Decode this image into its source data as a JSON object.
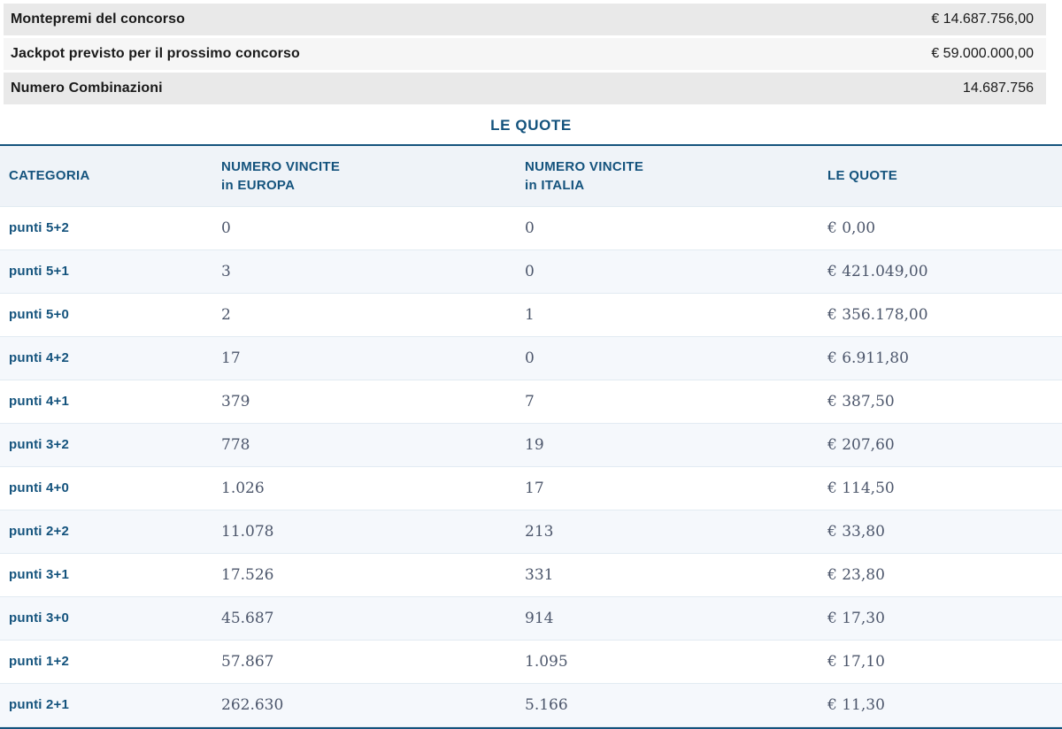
{
  "summary": {
    "rows": [
      {
        "label": "Montepremi del concorso",
        "value": "€ 14.687.756,00"
      },
      {
        "label": "Jackpot previsto per il prossimo concorso",
        "value": "€ 59.000.000,00"
      },
      {
        "label": "Numero Combinazioni",
        "value": "14.687.756"
      }
    ]
  },
  "section": {
    "title": "LE QUOTE"
  },
  "table": {
    "columns": [
      {
        "label": "CATEGORIA",
        "sublabel": ""
      },
      {
        "label": "NUMERO VINCITE",
        "sublabel": "in EUROPA"
      },
      {
        "label": "NUMERO VINCITE",
        "sublabel": "in ITALIA"
      },
      {
        "label": "LE QUOTE",
        "sublabel": ""
      }
    ],
    "rows": [
      {
        "categoria": "punti 5+2",
        "europa": "0",
        "italia": "0",
        "quota": "€ 0,00"
      },
      {
        "categoria": "punti 5+1",
        "europa": "3",
        "italia": "0",
        "quota": "€ 421.049,00"
      },
      {
        "categoria": "punti 5+0",
        "europa": "2",
        "italia": "1",
        "quota": "€ 356.178,00"
      },
      {
        "categoria": "punti 4+2",
        "europa": "17",
        "italia": "0",
        "quota": "€ 6.911,80"
      },
      {
        "categoria": "punti 4+1",
        "europa": "379",
        "italia": "7",
        "quota": "€ 387,50"
      },
      {
        "categoria": "punti 3+2",
        "europa": "778",
        "italia": "19",
        "quota": "€ 207,60"
      },
      {
        "categoria": "punti 4+0",
        "europa": "1.026",
        "italia": "17",
        "quota": "€ 114,50"
      },
      {
        "categoria": "punti 2+2",
        "europa": "11.078",
        "italia": "213",
        "quota": "€ 33,80"
      },
      {
        "categoria": "punti 3+1",
        "europa": "17.526",
        "italia": "331",
        "quota": "€ 23,80"
      },
      {
        "categoria": "punti 3+0",
        "europa": "45.687",
        "italia": "914",
        "quota": "€ 17,30"
      },
      {
        "categoria": "punti 1+2",
        "europa": "57.867",
        "italia": "1.095",
        "quota": "€ 17,10"
      },
      {
        "categoria": "punti 2+1",
        "europa": "262.630",
        "italia": "5.166",
        "quota": "€ 11,30"
      }
    ]
  },
  "colors": {
    "accent_blue": "#14537d",
    "summary_bar_dark": "#e9e9e9",
    "summary_bar_light": "#f6f6f6",
    "row_stripe": "#f5f8fc",
    "number_text": "#4c566b"
  }
}
